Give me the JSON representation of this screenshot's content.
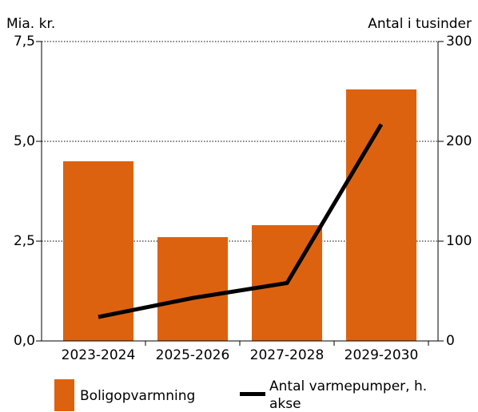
{
  "chart_data": {
    "type": "bar",
    "y_label": "Mia. kr.",
    "y2_label": "Antal i tusinder",
    "categories": [
      "2023-2024",
      "2025-2026",
      "2027-2028",
      "2029-2030"
    ],
    "series": [
      {
        "name": "Boligopvarmning",
        "type": "bar",
        "color": "#dd6210",
        "values": [
          4.5,
          2.6,
          2.9,
          6.3
        ]
      },
      {
        "name": "Antal varmepumper, h. akse",
        "type": "line",
        "axis": "y2",
        "color": "#000000",
        "values": [
          24,
          43,
          58,
          217
        ]
      }
    ],
    "ylim": [
      0,
      7.5
    ],
    "yticks": [
      {
        "value": 0,
        "label": "0,0"
      },
      {
        "value": 2.5,
        "label": "2,5"
      },
      {
        "value": 5,
        "label": "5,0"
      },
      {
        "value": 7.5,
        "label": "7,5"
      }
    ],
    "y2lim": [
      0,
      300
    ],
    "y2ticks": [
      0,
      100,
      200,
      300
    ],
    "grid": true
  }
}
